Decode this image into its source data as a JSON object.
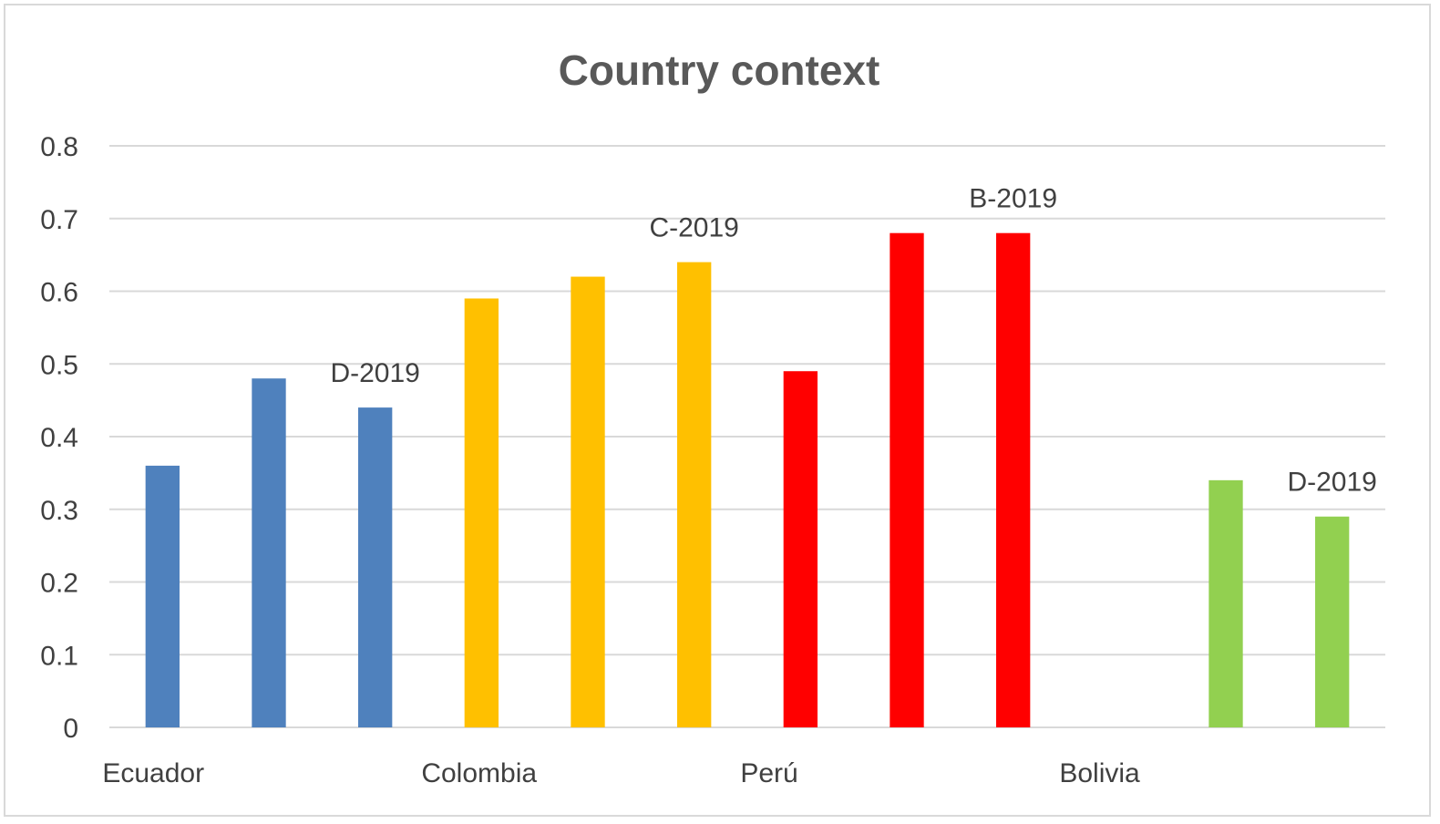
{
  "chart_data": {
    "type": "bar",
    "title": "Country context",
    "xlabel": "",
    "ylabel": "",
    "ylim": [
      0,
      0.8
    ],
    "yticks": [
      "0",
      "0.1",
      "0.2",
      "0.3",
      "0.4",
      "0.5",
      "0.6",
      "0.7",
      "0.8"
    ],
    "grid": true,
    "legend": "none",
    "groups": [
      {
        "name": "Ecuador",
        "color": "#4f81bd",
        "slots": 3,
        "bars": [
          {
            "value": 0.36,
            "label": ""
          },
          {
            "value": 0.48,
            "label": ""
          },
          {
            "value": 0.44,
            "label": "D-2019"
          }
        ]
      },
      {
        "name": "Colombia",
        "color": "#ffc000",
        "slots": 3,
        "bars": [
          {
            "value": 0.59,
            "label": ""
          },
          {
            "value": 0.62,
            "label": ""
          },
          {
            "value": 0.64,
            "label": "C-2019"
          }
        ]
      },
      {
        "name": "Perú",
        "color": "#ff0000",
        "slots": 3,
        "bars": [
          {
            "value": 0.49,
            "label": ""
          },
          {
            "value": 0.68,
            "label": ""
          },
          {
            "value": 0.68,
            "label": "B-2019"
          }
        ]
      },
      {
        "name": "Bolivia",
        "color": "#92d050",
        "slots": 3,
        "bars": [
          null,
          {
            "value": 0.34,
            "label": ""
          },
          {
            "value": 0.29,
            "label": "D-2019"
          }
        ]
      }
    ]
  }
}
